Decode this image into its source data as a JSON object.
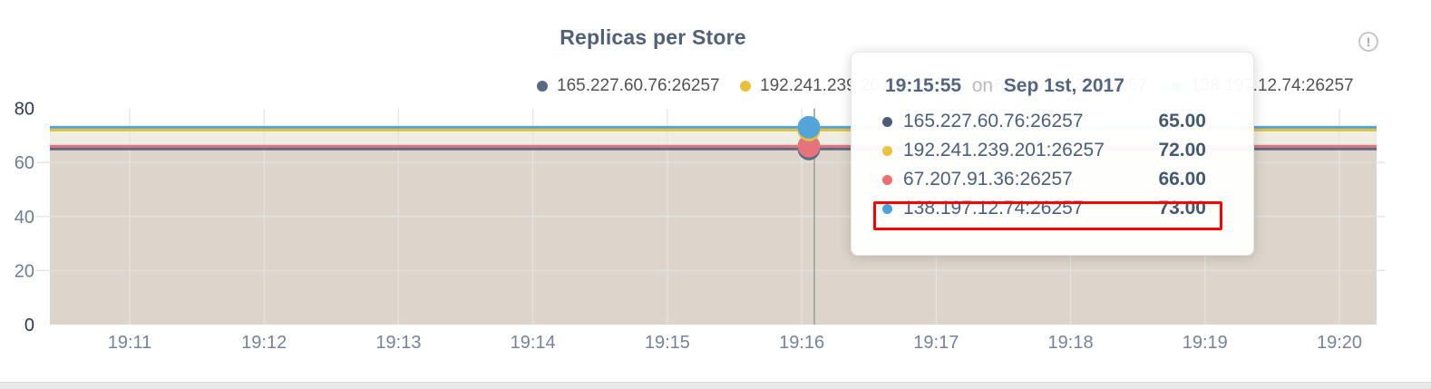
{
  "page": {
    "title": "Replicas per Store"
  },
  "info_icon": {
    "glyph": "!"
  },
  "legend": {
    "items": [
      {
        "label": "165.227.60.76:26257",
        "color": "#596a85"
      },
      {
        "label": "192.241.239.201:26257",
        "color": "#e9c03c"
      },
      {
        "label": "67.207.91.36:26257",
        "color": "#e76f75"
      },
      {
        "label": "138.197.12.74:26257",
        "color": "#4ba1d9"
      }
    ]
  },
  "chart_data": {
    "type": "area",
    "title": "Replicas per Store",
    "x_ticks": [
      "19:11",
      "19:12",
      "19:13",
      "19:14",
      "19:15",
      "19:16",
      "19:17",
      "19:18",
      "19:19",
      "19:20"
    ],
    "y_ticks": [
      0,
      20,
      40,
      60,
      80
    ],
    "y_tick_labels": [
      "0",
      "20",
      "40",
      "60",
      "80"
    ],
    "ylim": [
      0,
      80
    ],
    "grid": true,
    "legend_position": "top",
    "series": [
      {
        "name": "165.227.60.76:26257",
        "color": "#596a85",
        "value": 65
      },
      {
        "name": "192.241.239.201:26257",
        "color": "#e0c03e",
        "value": 72
      },
      {
        "name": "67.207.91.36:26257",
        "color": "#e4737b",
        "value": 66
      },
      {
        "name": "138.197.12.74:26257",
        "color": "#55a4d9",
        "value": 73
      }
    ],
    "bands": [
      {
        "from": 0,
        "to": 65,
        "color": "#ddd5cb"
      },
      {
        "from": 65,
        "to": 66,
        "color": "#d2c7c7"
      },
      {
        "from": 66,
        "to": 72,
        "color": "#efeee3"
      },
      {
        "from": 72,
        "to": 73,
        "color": "#d9e8f3"
      }
    ],
    "hover_time": "19:15:55"
  },
  "tooltip": {
    "time": "19:15:55",
    "preposition": "on",
    "date": "Sep 1st, 2017",
    "rows": [
      {
        "name": "165.227.60.76:26257",
        "value": "65.00",
        "color": "#4d5c75"
      },
      {
        "name": "192.241.239.201:26257",
        "value": "72.00",
        "color": "#eac23e"
      },
      {
        "name": "67.207.91.36:26257",
        "value": "66.00",
        "color": "#ee6e71"
      },
      {
        "name": "138.197.12.74:26257",
        "value": "73.00",
        "color": "#4ba1d9"
      }
    ],
    "highlight_index": 3,
    "highlight_color": "#f50400"
  }
}
